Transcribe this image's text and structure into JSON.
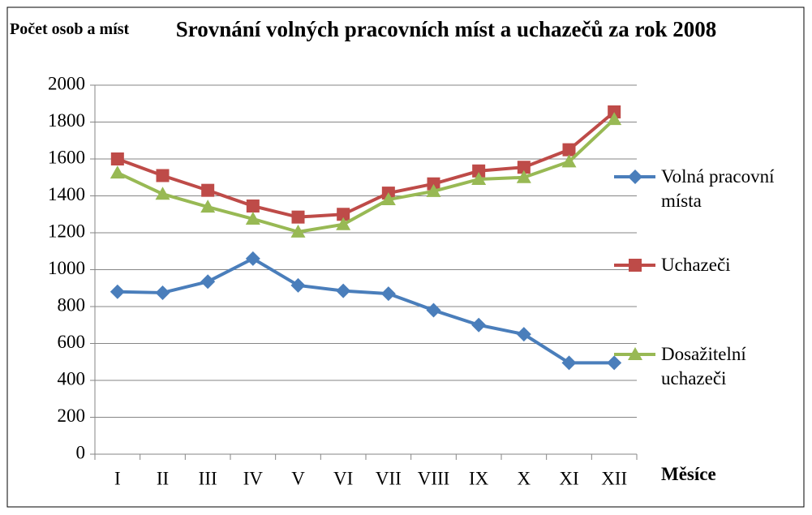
{
  "chart_data": {
    "type": "line",
    "title": "Srovnání volných pracovních míst a uchazečů za rok 2008",
    "y_label": "Počet osob a míst",
    "x_label": "Měsíce",
    "categories": [
      "I",
      "II",
      "III",
      "IV",
      "V",
      "VI",
      "VII",
      "VIII",
      "IX",
      "X",
      "XI",
      "XII"
    ],
    "series": [
      {
        "name": "Volná pracovní místa",
        "color": "#4a7ebb",
        "marker": "diamond",
        "values": [
          880,
          875,
          935,
          1060,
          915,
          885,
          870,
          780,
          700,
          650,
          495,
          495
        ]
      },
      {
        "name": "Uchazeči",
        "color": "#be4b48",
        "marker": "square",
        "values": [
          1600,
          1510,
          1430,
          1345,
          1285,
          1300,
          1415,
          1465,
          1535,
          1555,
          1650,
          1855
        ]
      },
      {
        "name": "Dosažitelní uchazeči",
        "color": "#98b954",
        "marker": "triangle",
        "values": [
          1525,
          1410,
          1340,
          1275,
          1205,
          1245,
          1380,
          1425,
          1490,
          1500,
          1585,
          1815
        ]
      }
    ],
    "ylim": [
      0,
      2000
    ],
    "yticks": [
      0,
      200,
      400,
      600,
      800,
      1000,
      1200,
      1400,
      1600,
      1800,
      2000
    ],
    "grid": true,
    "legend": "right"
  }
}
